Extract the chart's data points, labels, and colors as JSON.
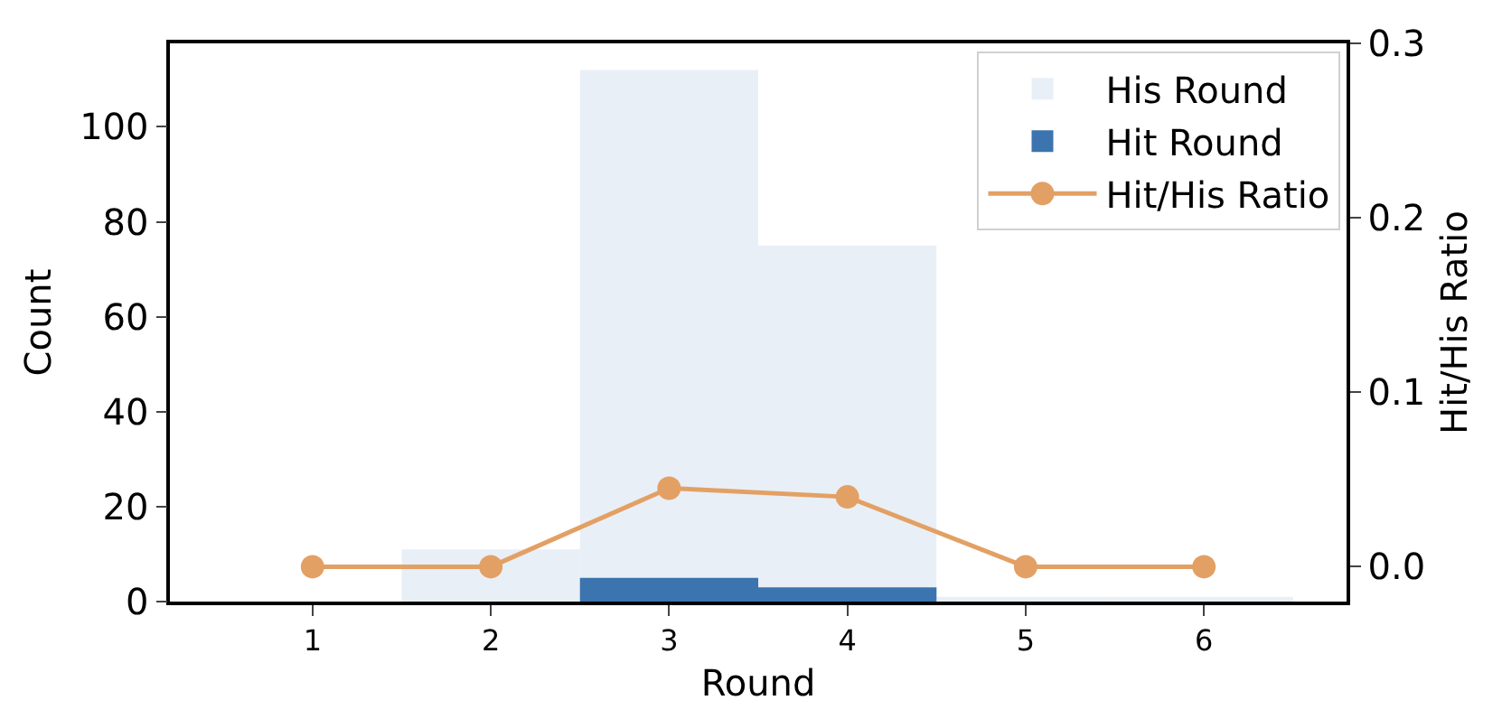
{
  "chart_data": {
    "type": "bar",
    "xlabel": "Round",
    "ylabel": "Count",
    "y2label": "Hit/His Ratio",
    "x": [
      1,
      2,
      3,
      4,
      5,
      6
    ],
    "xlim": [
      0.2,
      6.8
    ],
    "xticks": [
      1,
      2,
      3,
      4,
      5,
      6
    ],
    "ylim": [
      0,
      117.6
    ],
    "yticks": [
      0,
      20,
      40,
      60,
      80,
      100
    ],
    "y2lim": [
      -0.02,
      0.3
    ],
    "y2ticks": [
      {
        "value": 0,
        "label": "0.0"
      },
      0.1,
      0.2,
      0.3
    ],
    "series": [
      {
        "name": "His Round",
        "color": "#e9eff7",
        "values": [
          0,
          11,
          112,
          75,
          1,
          1
        ]
      },
      {
        "name": "Hit Round",
        "color": "#3b74ae",
        "values": [
          0,
          0,
          5,
          3,
          0,
          0
        ]
      },
      {
        "name": "Hit/His Ratio",
        "type": "line",
        "axis": "y2",
        "color": "#e3a064",
        "marker": "circle",
        "line_style": "solid",
        "values": [
          0,
          0,
          0.045,
          0.04,
          0,
          0
        ]
      }
    ],
    "legend": "top right",
    "grid": false
  }
}
